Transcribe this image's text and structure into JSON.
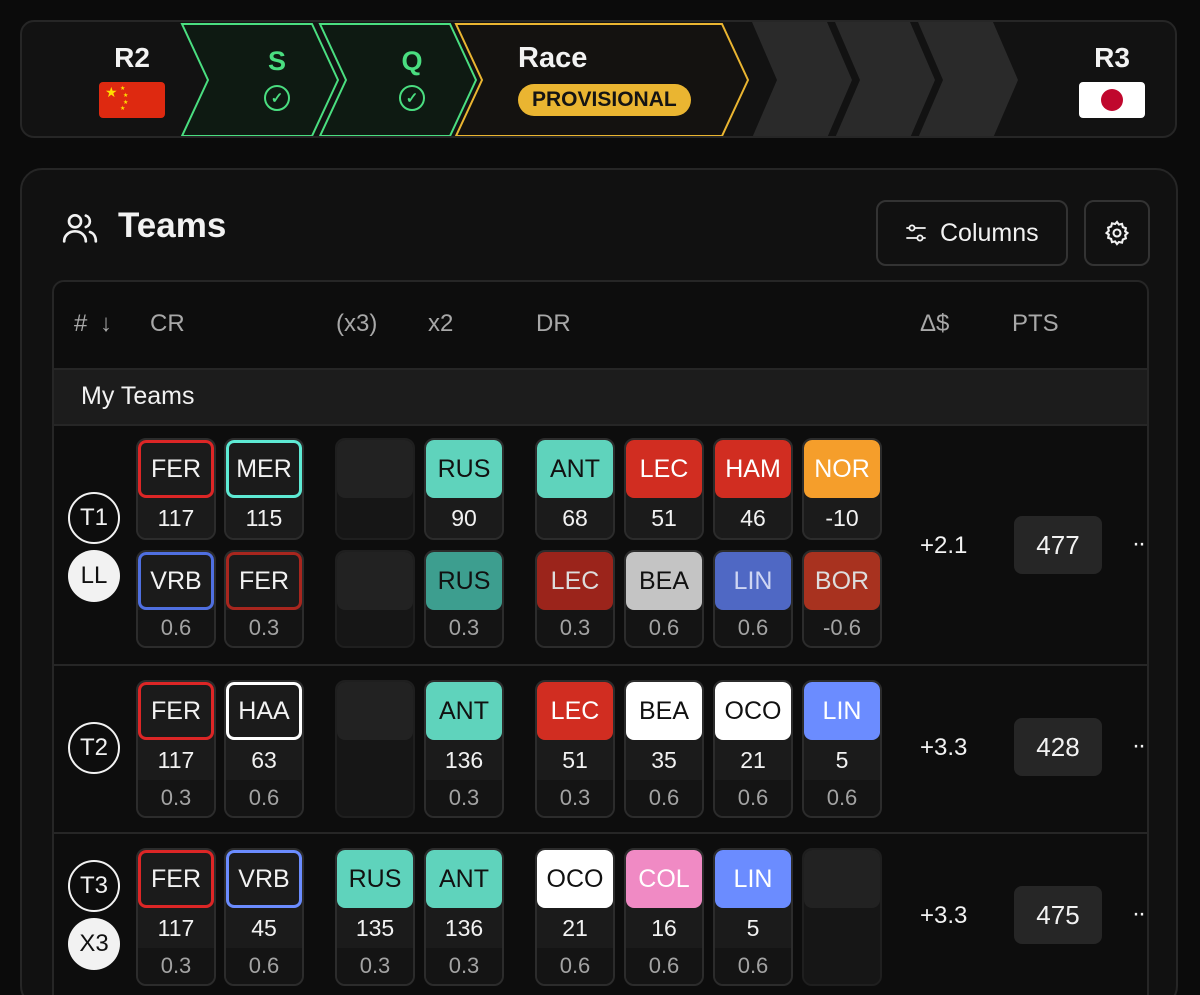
{
  "progress": {
    "prev_round": "R2",
    "next_round": "R3",
    "steps": [
      {
        "label": "S",
        "status": "done"
      },
      {
        "label": "Q",
        "status": "done"
      }
    ],
    "race": {
      "title": "Race",
      "badge": "PROVISIONAL"
    },
    "colors": {
      "done": "#4ade80",
      "current": "#eab531"
    }
  },
  "panel": {
    "title": "Teams",
    "columns_button": "Columns",
    "settings_icon": "gear-icon"
  },
  "table": {
    "headers": {
      "rank": "#",
      "sort": "↓",
      "cr": "CR",
      "x3": "(x3)",
      "x2": "x2",
      "dr": "DR",
      "delta": "Δ$",
      "pts": "PTS"
    },
    "group": "My Teams",
    "rows": [
      {
        "team": "T1",
        "chip": "LL",
        "delta": "+2.1",
        "pts": "477",
        "more": "··",
        "top": {
          "cr": [
            {
              "code": "FER",
              "pts": "117",
              "style": "outline",
              "color": "#dc2626"
            },
            {
              "code": "MER",
              "pts": "115",
              "style": "outline",
              "color": "#5eead4"
            }
          ],
          "x3": null,
          "x2": {
            "code": "RUS",
            "pts": "90",
            "style": "fill",
            "color": "#5fd3bc",
            "text": "#111"
          },
          "dr": [
            {
              "code": "ANT",
              "pts": "68",
              "style": "fill",
              "color": "#5fd3bc",
              "text": "#111"
            },
            {
              "code": "LEC",
              "pts": "51",
              "style": "fill",
              "color": "#d12d21",
              "text": "#fff"
            },
            {
              "code": "HAM",
              "pts": "46",
              "style": "fill",
              "color": "#d12d21",
              "text": "#fff"
            },
            {
              "code": "NOR",
              "pts": "-10",
              "style": "fill",
              "color": "#f59e2b",
              "text": "#fff"
            }
          ]
        },
        "bottom": {
          "cr": [
            {
              "code": "VRB",
              "mult": "0.6",
              "style": "outline",
              "color": "#4f6fe0"
            },
            {
              "code": "FER",
              "mult": "0.3",
              "style": "outline",
              "color": "#a8261e"
            }
          ],
          "x3": null,
          "x2": {
            "code": "RUS",
            "mult": "0.3",
            "style": "fill",
            "color": "#3d9e8f",
            "text": "#111"
          },
          "dr": [
            {
              "code": "LEC",
              "mult": "0.3",
              "style": "fill",
              "color": "#9b241b",
              "text": "#ddd"
            },
            {
              "code": "BEA",
              "mult": "0.6",
              "style": "fill",
              "color": "#c4c4c4",
              "text": "#111"
            },
            {
              "code": "LIN",
              "mult": "0.6",
              "style": "fill",
              "color": "#4f68c4",
              "text": "#cfd6f3"
            },
            {
              "code": "BOR",
              "mult": "-0.6",
              "style": "fill",
              "color": "#a8321f",
              "text": "#ddd"
            }
          ]
        }
      },
      {
        "team": "T2",
        "chip": "",
        "delta": "+3.3",
        "pts": "428",
        "more": "··",
        "cr": [
          {
            "code": "FER",
            "pts": "117",
            "mult": "0.3",
            "style": "outline",
            "color": "#dc2626"
          },
          {
            "code": "HAA",
            "pts": "63",
            "mult": "0.6",
            "style": "outline",
            "color": "#ffffff"
          }
        ],
        "x3": null,
        "x2": {
          "code": "ANT",
          "pts": "136",
          "mult": "0.3",
          "style": "fill",
          "color": "#5fd3bc",
          "text": "#111"
        },
        "dr": [
          {
            "code": "LEC",
            "pts": "51",
            "mult": "0.3",
            "style": "fill",
            "color": "#d12d21",
            "text": "#fff"
          },
          {
            "code": "BEA",
            "pts": "35",
            "mult": "0.6",
            "style": "fill",
            "color": "#ffffff",
            "text": "#111"
          },
          {
            "code": "OCO",
            "pts": "21",
            "mult": "0.6",
            "style": "fill",
            "color": "#ffffff",
            "text": "#111"
          },
          {
            "code": "LIN",
            "pts": "5",
            "mult": "0.6",
            "style": "fill",
            "color": "#6b8cff",
            "text": "#fff"
          }
        ]
      },
      {
        "team": "T3",
        "chip": "X3",
        "delta": "+3.3",
        "pts": "475",
        "more": "··",
        "cr": [
          {
            "code": "FER",
            "pts": "117",
            "mult": "0.3",
            "style": "outline",
            "color": "#dc2626"
          },
          {
            "code": "VRB",
            "pts": "45",
            "mult": "0.6",
            "style": "outline",
            "color": "#6b8cff"
          }
        ],
        "x3": {
          "code": "RUS",
          "pts": "135",
          "mult": "0.3",
          "style": "fill",
          "color": "#5fd3bc",
          "text": "#111"
        },
        "x2": {
          "code": "ANT",
          "pts": "136",
          "mult": "0.3",
          "style": "fill",
          "color": "#5fd3bc",
          "text": "#111"
        },
        "dr": [
          {
            "code": "OCO",
            "pts": "21",
            "mult": "0.6",
            "style": "fill",
            "color": "#ffffff",
            "text": "#111"
          },
          {
            "code": "COL",
            "pts": "16",
            "mult": "0.6",
            "style": "fill",
            "color": "#f08ac4",
            "text": "#fff"
          },
          {
            "code": "LIN",
            "pts": "5",
            "mult": "0.6",
            "style": "fill",
            "color": "#6b8cff",
            "text": "#fff"
          },
          null
        ]
      }
    ]
  }
}
